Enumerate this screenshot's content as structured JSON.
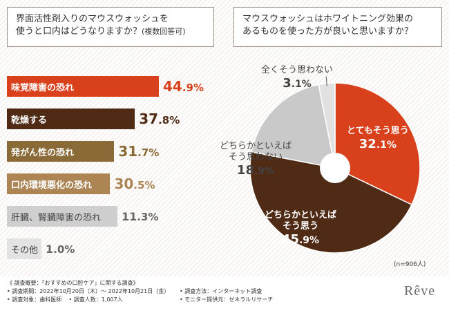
{
  "left_question": {
    "line1": "界面活性剤入りのマウスウォッシュを",
    "line2": "使うと口内はどうなりますか？",
    "note": "(複数回答可)"
  },
  "right_question": {
    "line1": "マウスウォッシュはホワイトニング効果の",
    "line2": "あるものを使った方が良いと思いますか？"
  },
  "colors": {
    "red": "#d9401c",
    "dark_brown": "#4f2a14",
    "brown": "#8a6a36",
    "tan": "#ad8555",
    "light_gray": "#cfcfcf",
    "pale_gray": "#e3e3e3"
  },
  "chart_data": [
    {
      "type": "bar",
      "orientation": "horizontal",
      "categories": [
        "味覚障害の恐れ",
        "乾燥する",
        "発がん性の恐れ",
        "口内環境悪化の恐れ",
        "肝臓、腎臓障害の恐れ",
        "その他"
      ],
      "values": [
        44.9,
        37.8,
        31.7,
        30.5,
        11.3,
        1.0
      ],
      "unit": "%"
    },
    {
      "type": "pie",
      "labels": [
        "とてもそう思う",
        "どちらかといえばそう思う",
        "どちらかといえばそう思わない",
        "全くそう思わない"
      ],
      "label_lines": [
        [
          "とてもそう思う"
        ],
        [
          "どちらかといえば",
          "そう思う"
        ],
        [
          "どちらかといえば",
          "そう思わない"
        ],
        [
          "全くそう思わない"
        ]
      ],
      "values": [
        32.1,
        45.9,
        18.9,
        3.1
      ],
      "unit": "%",
      "start": "12 o'clock, clockwise",
      "donut_hole": true
    }
  ],
  "sample_note": "(n=906人)",
  "footer": {
    "title": "《 調査概要：「おすすめの口腔ケア」に関する調査》",
    "period": "• 調査期間：2022年10月20日（木）～ 2022年10月21日（金）",
    "method": "• 調査方法：インターネット調査",
    "subjects": "• 調査対象：歯科医師",
    "count": "• 調査人数：1,007人",
    "provider": "• モニター提供元：ゼネラルリサーチ"
  },
  "logo": "Rêve"
}
